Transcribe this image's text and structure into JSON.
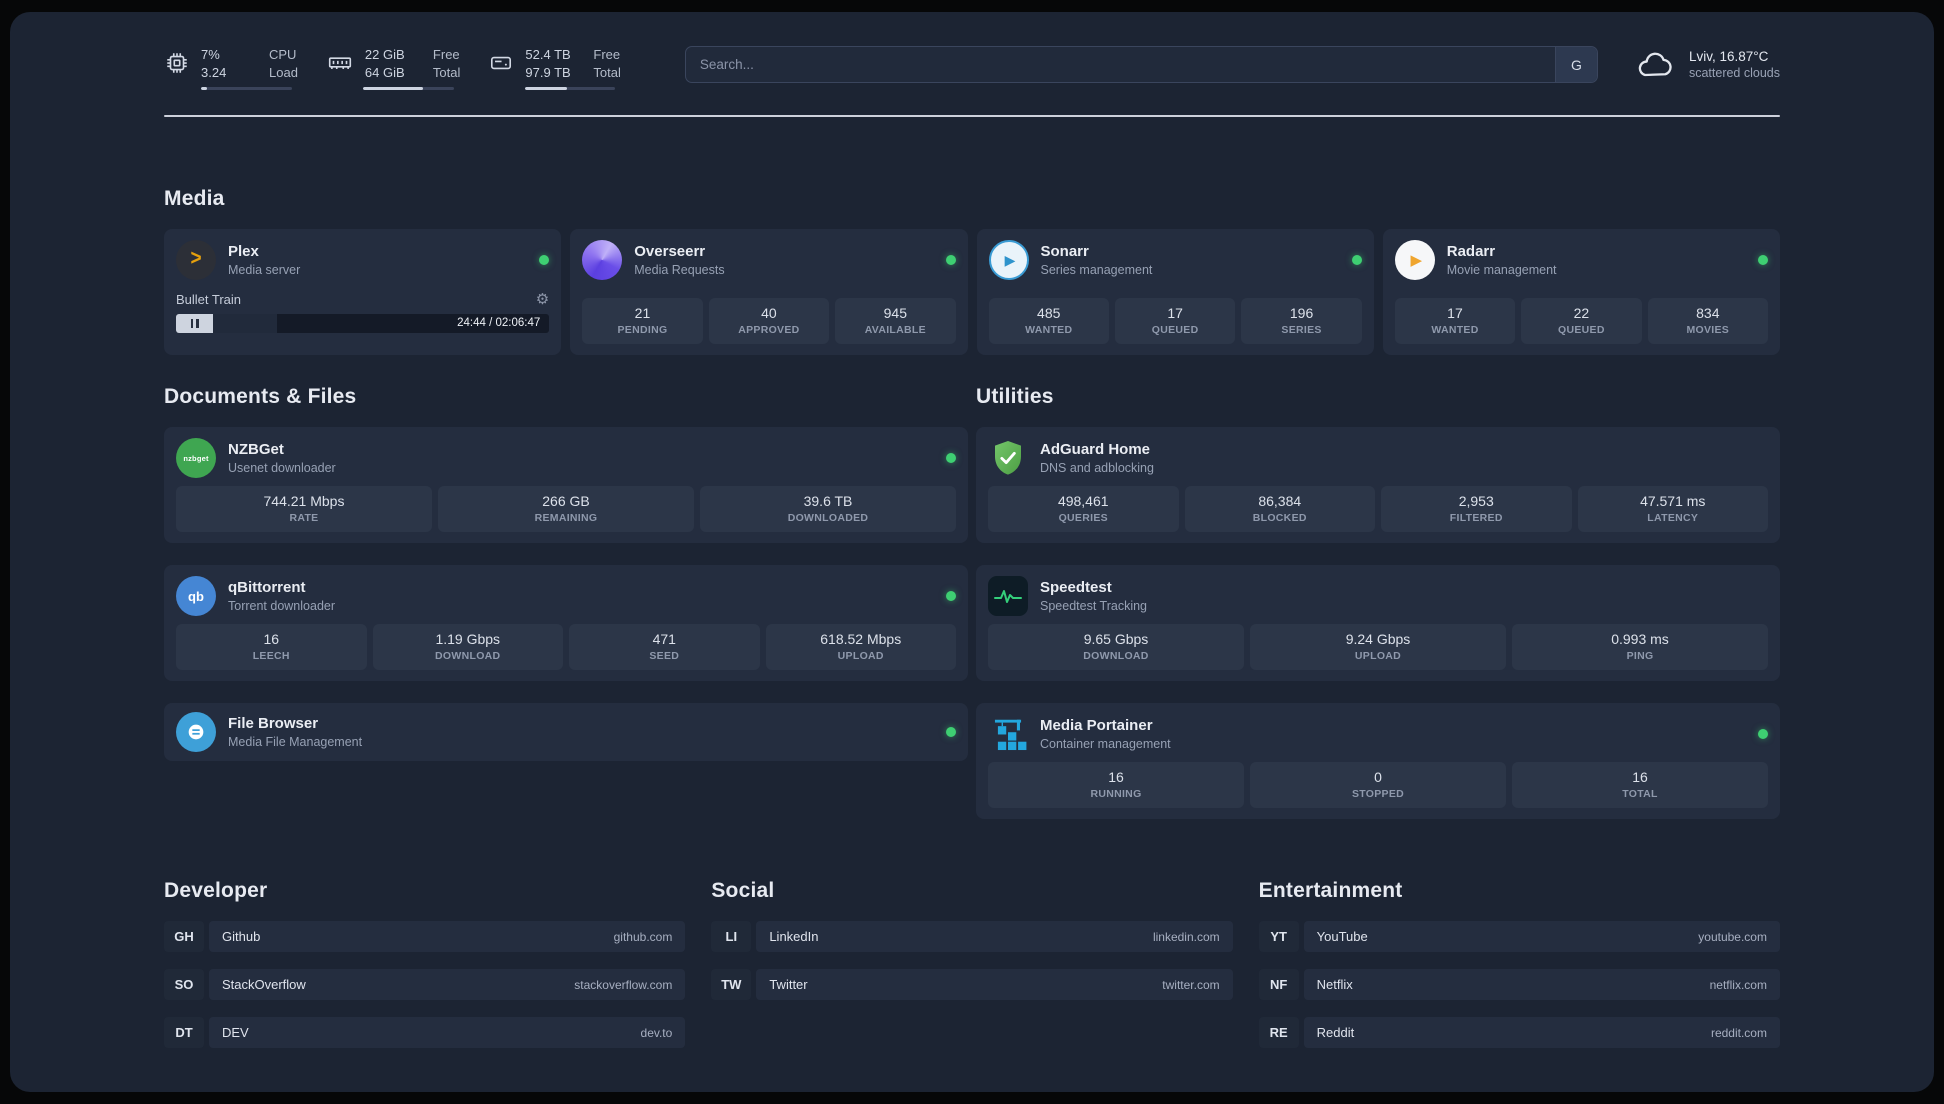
{
  "topbar": {
    "cpu": {
      "percent": "7%",
      "load": "3.24",
      "labels": [
        "CPU",
        "Load"
      ],
      "bar_percent": 7
    },
    "memory": {
      "free": "22 GiB",
      "total": "64 GiB",
      "labels": [
        "Free",
        "Total"
      ],
      "bar_percent": 66
    },
    "disk": {
      "free": "52.4 TB",
      "total": "97.9 TB",
      "labels": [
        "Free",
        "Total"
      ],
      "bar_percent": 47
    },
    "search": {
      "placeholder": "Search...",
      "provider": "G"
    },
    "weather": {
      "location": "Lviv, 16.87°C",
      "condition": "scattered clouds"
    }
  },
  "media": {
    "title": "Media",
    "plex": {
      "name": "Plex",
      "subtitle": "Media server",
      "now_playing": "Bullet Train",
      "time": "24:44 / 02:06:47",
      "progress_percent": 19
    },
    "overseerr": {
      "name": "Overseerr",
      "subtitle": "Media Requests",
      "stats": [
        {
          "value": "21",
          "label": "PENDING"
        },
        {
          "value": "40",
          "label": "APPROVED"
        },
        {
          "value": "945",
          "label": "AVAILABLE"
        }
      ]
    },
    "sonarr": {
      "name": "Sonarr",
      "subtitle": "Series management",
      "stats": [
        {
          "value": "485",
          "label": "WANTED"
        },
        {
          "value": "17",
          "label": "QUEUED"
        },
        {
          "value": "196",
          "label": "SERIES"
        }
      ]
    },
    "radarr": {
      "name": "Radarr",
      "subtitle": "Movie management",
      "stats": [
        {
          "value": "17",
          "label": "WANTED"
        },
        {
          "value": "22",
          "label": "QUEUED"
        },
        {
          "value": "834",
          "label": "MOVIES"
        }
      ]
    }
  },
  "documents": {
    "title": "Documents & Files",
    "nzbget": {
      "name": "NZBGet",
      "subtitle": "Usenet downloader",
      "icon_text": "nzbget",
      "stats": [
        {
          "value": "744.21 Mbps",
          "label": "RATE"
        },
        {
          "value": "266 GB",
          "label": "REMAINING"
        },
        {
          "value": "39.6 TB",
          "label": "DOWNLOADED"
        }
      ]
    },
    "qbittorrent": {
      "name": "qBittorrent",
      "subtitle": "Torrent downloader",
      "icon_text": "qb",
      "stats": [
        {
          "value": "16",
          "label": "LEECH"
        },
        {
          "value": "1.19 Gbps",
          "label": "DOWNLOAD"
        },
        {
          "value": "471",
          "label": "SEED"
        },
        {
          "value": "618.52 Mbps",
          "label": "UPLOAD"
        }
      ]
    },
    "filebrowser": {
      "name": "File Browser",
      "subtitle": "Media File Management"
    }
  },
  "utilities": {
    "title": "Utilities",
    "adguard": {
      "name": "AdGuard Home",
      "subtitle": "DNS and adblocking",
      "stats": [
        {
          "value": "498,461",
          "label": "QUERIES"
        },
        {
          "value": "86,384",
          "label": "BLOCKED"
        },
        {
          "value": "2,953",
          "label": "FILTERED"
        },
        {
          "value": "47.571 ms",
          "label": "LATENCY"
        }
      ]
    },
    "speedtest": {
      "name": "Speedtest",
      "subtitle": "Speedtest Tracking",
      "stats": [
        {
          "value": "9.65 Gbps",
          "label": "DOWNLOAD"
        },
        {
          "value": "9.24 Gbps",
          "label": "UPLOAD"
        },
        {
          "value": "0.993 ms",
          "label": "PING"
        }
      ]
    },
    "portainer": {
      "name": "Media Portainer",
      "subtitle": "Container management",
      "stats": [
        {
          "value": "16",
          "label": "RUNNING"
        },
        {
          "value": "0",
          "label": "STOPPED"
        },
        {
          "value": "16",
          "label": "TOTAL"
        }
      ]
    }
  },
  "bookmarks": {
    "developer": {
      "title": "Developer",
      "items": [
        {
          "abbr": "GH",
          "name": "Github",
          "domain": "github.com"
        },
        {
          "abbr": "SO",
          "name": "StackOverflow",
          "domain": "stackoverflow.com"
        },
        {
          "abbr": "DT",
          "name": "DEV",
          "domain": "dev.to"
        }
      ]
    },
    "social": {
      "title": "Social",
      "items": [
        {
          "abbr": "LI",
          "name": "LinkedIn",
          "domain": "linkedin.com"
        },
        {
          "abbr": "TW",
          "name": "Twitter",
          "domain": "twitter.com"
        }
      ]
    },
    "entertainment": {
      "title": "Entertainment",
      "items": [
        {
          "abbr": "YT",
          "name": "YouTube",
          "domain": "youtube.com"
        },
        {
          "abbr": "NF",
          "name": "Netflix",
          "domain": "netflix.com"
        },
        {
          "abbr": "RE",
          "name": "Reddit",
          "domain": "reddit.com"
        }
      ]
    }
  },
  "colors": {
    "status_online": "#3ecf72",
    "plex_accent": "#e5a00d"
  }
}
